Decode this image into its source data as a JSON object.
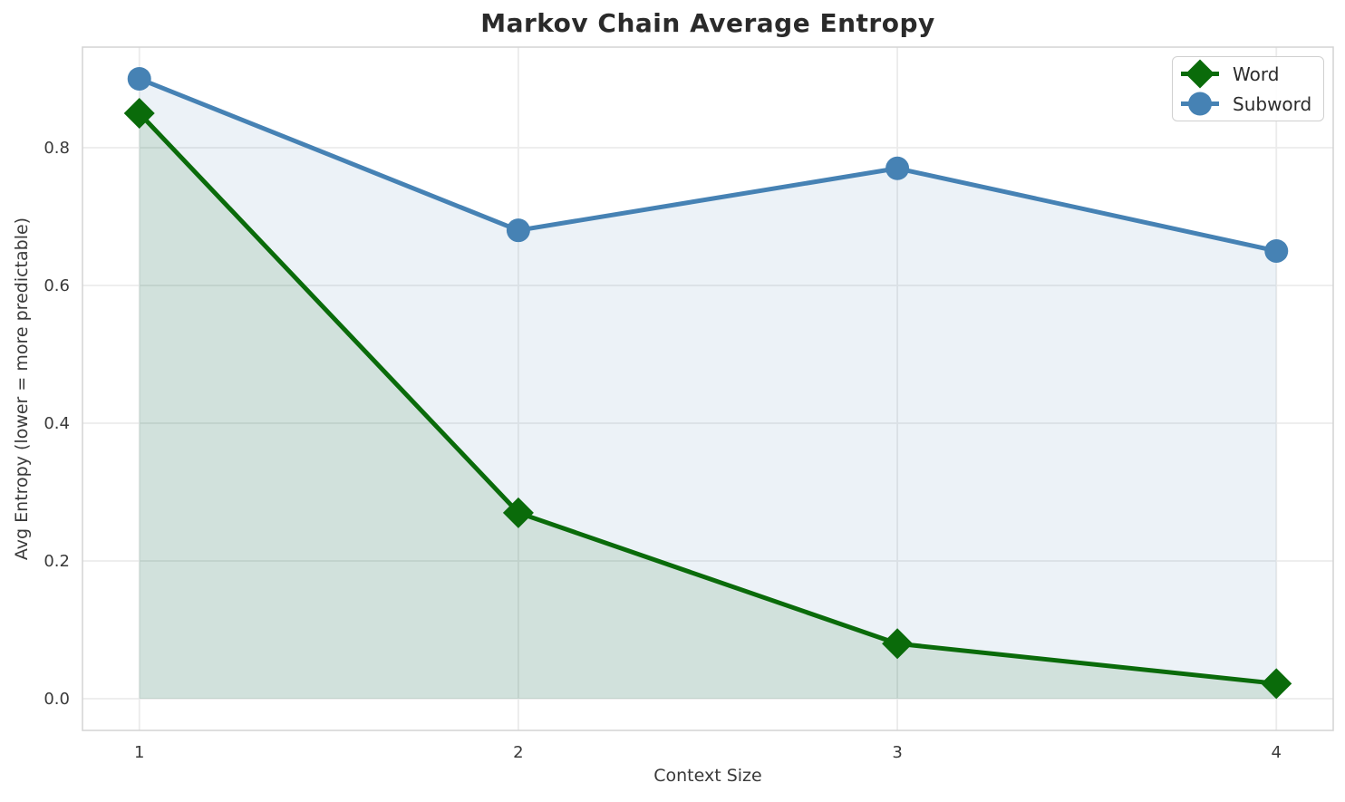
{
  "chart_data": {
    "type": "line",
    "title": "Markov Chain Average Entropy",
    "xlabel": "Context Size",
    "ylabel": "Avg Entropy (lower = more predictable)",
    "x": [
      1,
      2,
      3,
      4
    ],
    "series": [
      {
        "name": "Word",
        "marker": "diamond",
        "color": "#0a6b0a",
        "fill_opacity": 0.12,
        "values": [
          0.85,
          0.27,
          0.08,
          0.022
        ]
      },
      {
        "name": "Subword",
        "marker": "circle",
        "color": "#4682b4",
        "fill_opacity": 0.1,
        "values": [
          0.9,
          0.68,
          0.77,
          0.65
        ]
      }
    ],
    "area_fill_baseline": 0,
    "xlim": [
      0.85,
      4.15
    ],
    "ylim": [
      -0.046,
      0.946
    ],
    "xticks": [
      "1",
      "2",
      "3",
      "4"
    ],
    "xtick_values": [
      1,
      2,
      3,
      4
    ],
    "yticks": [
      "0.0",
      "0.2",
      "0.4",
      "0.6",
      "0.8"
    ],
    "ytick_values": [
      0.0,
      0.2,
      0.4,
      0.6,
      0.8
    ],
    "grid": true,
    "legend_position": "upper right"
  },
  "colors": {
    "grid": "#ebebeb",
    "spine": "#d3d3d3",
    "tick_text": "#3a3a3a",
    "title_text": "#2a2a2a",
    "background": "#ffffff",
    "legend_border": "#d0d0d0"
  }
}
